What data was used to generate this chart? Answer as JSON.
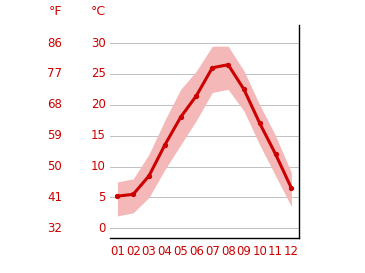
{
  "months": [
    1,
    2,
    3,
    4,
    5,
    6,
    7,
    8,
    9,
    10,
    11,
    12
  ],
  "month_labels": [
    "01",
    "02",
    "03",
    "04",
    "05",
    "06",
    "07",
    "08",
    "09",
    "10",
    "11",
    "12"
  ],
  "temp_mean": [
    5.2,
    5.5,
    8.5,
    13.5,
    18.0,
    21.5,
    26.0,
    26.5,
    22.5,
    17.0,
    12.0,
    6.5
  ],
  "temp_max": [
    7.5,
    8.0,
    12.0,
    17.5,
    22.5,
    25.5,
    29.5,
    29.5,
    25.5,
    20.0,
    15.0,
    9.0
  ],
  "temp_min": [
    2.0,
    2.5,
    5.0,
    9.5,
    13.5,
    17.5,
    22.0,
    22.5,
    19.0,
    13.5,
    8.5,
    3.5
  ],
  "line_color": "#cc0000",
  "band_color": "#f5b8b8",
  "grid_color": "#c0c0c0",
  "background_color": "#ffffff",
  "left_axis_labels_f": [
    "86",
    "77",
    "68",
    "59",
    "50",
    "41",
    "32"
  ],
  "left_axis_labels_c": [
    "30",
    "25",
    "20",
    "15",
    "10",
    "5",
    "0"
  ],
  "left_axis_values": [
    30,
    25,
    20,
    15,
    10,
    5,
    0
  ],
  "ylim": [
    -1.5,
    33
  ],
  "ylabel_f": "°F",
  "ylabel_c": "°C",
  "axis_label_color": "#cc0000",
  "axis_label_fontsize": 9,
  "tick_fontsize": 8.5,
  "xlim": [
    0.5,
    12.5
  ]
}
